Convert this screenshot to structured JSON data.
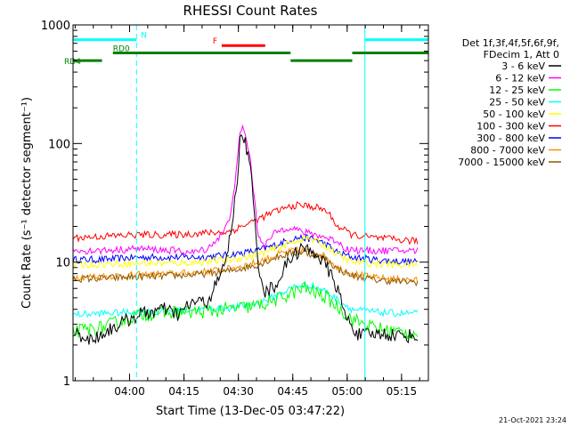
{
  "chart_data": {
    "type": "line",
    "title": "RHESSI Count Rates",
    "xlabel": "Start Time (13-Dec-05 03:47:22)",
    "ylabel": "Count Rate (s⁻¹ detector segment⁻¹)",
    "y_scale": "log",
    "ylim": [
      1,
      1000
    ],
    "xlim_minutes": [
      -3,
      95
    ],
    "x_ticks": [
      {
        "label": "04:00",
        "minute": 12.6
      },
      {
        "label": "04:15",
        "minute": 27.6
      },
      {
        "label": "04:30",
        "minute": 42.6
      },
      {
        "label": "04:45",
        "minute": 57.6
      },
      {
        "label": "05:00",
        "minute": 72.6
      },
      {
        "label": "05:15",
        "minute": 87.6
      }
    ],
    "y_ticks": [
      {
        "label": "1",
        "value": 1
      },
      {
        "label": "10",
        "value": 10
      },
      {
        "label": "100",
        "value": 100
      },
      {
        "label": "1000",
        "value": 1000
      }
    ],
    "legend": {
      "placement": "right",
      "header": [
        "Det 1f,3f,4f,5f,6f,9f,",
        "FDecim 1, Att 0"
      ],
      "entries": [
        {
          "label": "3 - 6 keV",
          "color": "#000000"
        },
        {
          "label": "6 - 12 keV",
          "color": "#ff00ff"
        },
        {
          "label": "12 - 25 keV",
          "color": "#00ff00"
        },
        {
          "label": "25 - 50 keV",
          "color": "#00ffff"
        },
        {
          "label": "50 - 100 keV",
          "color": "#ffff00"
        },
        {
          "label": "100 - 300 keV",
          "color": "#ff0000"
        },
        {
          "label": "300 - 800 keV",
          "color": "#0000ff"
        },
        {
          "label": "800 - 7000 keV",
          "color": "#ff8c00"
        },
        {
          "label": "7000 - 15000 keV",
          "color": "#8b5a00"
        }
      ]
    },
    "series": [
      {
        "name": "3 - 6 keV",
        "color": "#000000",
        "x": [
          -3,
          2,
          8,
          15,
          22,
          26,
          30,
          34,
          38,
          40,
          42,
          43,
          44,
          46,
          48,
          50,
          53,
          57,
          60,
          64,
          67,
          70,
          72,
          76,
          82,
          88,
          92
        ],
        "y": [
          2.6,
          2.2,
          2.8,
          3.6,
          4.0,
          3.6,
          4.6,
          4.6,
          8,
          14,
          40,
          100,
          120,
          60,
          10,
          5.5,
          6.5,
          11,
          13,
          12,
          9,
          6,
          3.5,
          2.4,
          2.5,
          2.4,
          2.4
        ]
      },
      {
        "name": "6 - 12 keV",
        "color": "#ff00ff",
        "x": [
          -3,
          5,
          15,
          25,
          30,
          34,
          38,
          40,
          42,
          43,
          44,
          46,
          48,
          50,
          53,
          57,
          60,
          64,
          67,
          70,
          72,
          76,
          82,
          88,
          92
        ],
        "y": [
          12.5,
          12.5,
          13,
          12.5,
          12,
          13,
          17,
          22,
          55,
          120,
          140,
          70,
          17,
          14,
          18,
          20,
          18,
          17,
          16,
          15,
          13,
          12.5,
          12.5,
          12.5,
          12.5
        ]
      },
      {
        "name": "12 - 25 keV",
        "color": "#00ff00",
        "x": [
          -3,
          5,
          15,
          25,
          32,
          40,
          48,
          53,
          58,
          61,
          64,
          67,
          70,
          74,
          80,
          86,
          92
        ],
        "y": [
          2.6,
          2.8,
          3.6,
          3.8,
          3.8,
          4.0,
          4.3,
          4.8,
          5.6,
          6.0,
          5.5,
          5.0,
          4.2,
          3.3,
          2.8,
          2.6,
          2.5
        ]
      },
      {
        "name": "25 - 50 keV",
        "color": "#00ffff",
        "x": [
          -3,
          5,
          15,
          25,
          32,
          40,
          48,
          53,
          58,
          61,
          64,
          67,
          70,
          74,
          80,
          86,
          92
        ],
        "y": [
          3.6,
          3.7,
          3.8,
          3.9,
          4.0,
          4.1,
          4.5,
          5.2,
          6.2,
          6.5,
          6.2,
          5.6,
          4.8,
          4.0,
          3.8,
          3.7,
          3.7
        ]
      },
      {
        "name": "50 - 100 keV",
        "color": "#ffff00",
        "x": [
          -3,
          5,
          15,
          25,
          32,
          40,
          48,
          53,
          58,
          61,
          64,
          67,
          70,
          74,
          80,
          86,
          92
        ],
        "y": [
          9.5,
          9.6,
          9.8,
          9.8,
          10,
          10.5,
          11.5,
          13,
          15,
          16,
          15,
          13.5,
          11.5,
          10,
          9.7,
          9.5,
          9.5
        ]
      },
      {
        "name": "100 - 300 keV",
        "color": "#ff0000",
        "x": [
          -3,
          5,
          15,
          25,
          32,
          40,
          48,
          53,
          58,
          61,
          64,
          67,
          70,
          74,
          80,
          86,
          92
        ],
        "y": [
          16,
          16.5,
          17,
          17,
          17.5,
          18,
          23,
          27,
          30,
          30,
          29,
          27,
          20,
          17,
          16,
          15.5,
          15
        ]
      },
      {
        "name": "300 - 800 keV",
        "color": "#0000ff",
        "x": [
          -3,
          5,
          15,
          25,
          32,
          40,
          48,
          53,
          58,
          61,
          64,
          67,
          70,
          74,
          80,
          86,
          92
        ],
        "y": [
          10.5,
          10.5,
          11,
          11,
          11,
          11.5,
          12.5,
          14,
          16,
          16,
          15.5,
          14,
          12,
          11,
          10.5,
          10.2,
          10
        ]
      },
      {
        "name": "800 - 7000 keV",
        "color": "#ff8c00",
        "x": [
          -3,
          5,
          15,
          25,
          32,
          40,
          48,
          53,
          58,
          61,
          64,
          67,
          70,
          74,
          80,
          86,
          92
        ],
        "y": [
          7.5,
          7.6,
          7.8,
          8,
          8.2,
          8.8,
          10,
          11.5,
          12.5,
          12.5,
          12,
          11,
          9,
          8,
          7.4,
          7.2,
          7
        ]
      },
      {
        "name": "7000 - 15000 keV",
        "color": "#8b5a00",
        "x": [
          -3,
          5,
          15,
          25,
          32,
          40,
          48,
          53,
          58,
          61,
          64,
          67,
          70,
          74,
          80,
          86,
          92
        ],
        "y": [
          7.2,
          7.3,
          7.5,
          7.7,
          7.9,
          8.4,
          9.5,
          11,
          12,
          12,
          11.5,
          10.5,
          8.7,
          7.7,
          7.1,
          6.9,
          6.8
        ]
      }
    ],
    "annotations": {
      "night_dashed_lines_minute": [
        14.5,
        95
      ],
      "night_solid_lines_minute": [
        -3,
        77.5
      ],
      "night_bars": [
        {
          "label": "N",
          "start": -3,
          "end": 14.5,
          "value": 750,
          "color": "#00ffff"
        },
        {
          "label": "",
          "start": 77.5,
          "end": 95,
          "value": 750,
          "color": "#00ffff"
        }
      ],
      "flare_bars": [
        {
          "label": "F",
          "start": 38,
          "end": 50,
          "value": 670,
          "color": "#ff0000"
        }
      ],
      "saa_bars": [
        {
          "label": "RD0",
          "start": 8,
          "end": 57,
          "value": 580,
          "color": "#008000"
        },
        {
          "label": "",
          "start": 57,
          "end": 74,
          "value": 500,
          "color": "#008000"
        },
        {
          "label": "",
          "start": 74,
          "end": 95,
          "value": 580,
          "color": "#008000"
        },
        {
          "label": "RD4",
          "start": -3,
          "end": 5,
          "value": 500,
          "color": "#008000"
        }
      ]
    },
    "grid": false
  },
  "footer": {
    "timestamp": "21-Oct-2021 23:24"
  }
}
